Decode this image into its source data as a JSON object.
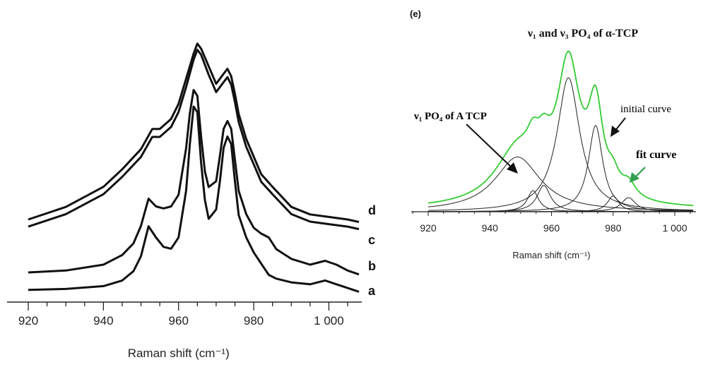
{
  "chart_data": [
    {
      "type": "line",
      "panel": "left",
      "title": "",
      "xlabel": "Raman shift (cm⁻¹)",
      "ylabel": "",
      "xlim": [
        920,
        1008
      ],
      "ylim": [
        0,
        1
      ],
      "x_ticks": [
        920,
        940,
        960,
        980,
        1000
      ],
      "x_tick_labels": [
        "920",
        "940",
        "960",
        "980",
        "1 000"
      ],
      "series": [
        {
          "name": "a",
          "x": [
            920,
            930,
            940,
            945,
            948,
            950,
            952,
            954,
            956,
            958,
            960,
            962,
            963,
            964,
            965,
            966,
            967,
            968,
            970,
            971,
            972,
            973,
            974,
            975,
            976,
            978,
            980,
            982,
            984,
            986,
            990,
            995,
            999,
            1002,
            1005,
            1008
          ],
          "values": [
            0.02,
            0.025,
            0.04,
            0.07,
            0.12,
            0.2,
            0.36,
            0.3,
            0.25,
            0.24,
            0.3,
            0.55,
            0.8,
            1.0,
            0.97,
            0.7,
            0.5,
            0.4,
            0.45,
            0.6,
            0.78,
            0.84,
            0.8,
            0.6,
            0.42,
            0.3,
            0.22,
            0.16,
            0.1,
            0.08,
            0.06,
            0.05,
            0.07,
            0.05,
            0.03,
            0.01
          ]
        },
        {
          "name": "b",
          "x": [
            920,
            930,
            940,
            945,
            948,
            950,
            952,
            954,
            956,
            958,
            960,
            962,
            963,
            964,
            965,
            966,
            967,
            968,
            970,
            971,
            972,
            973,
            974,
            975,
            976,
            978,
            980,
            982,
            984,
            986,
            990,
            995,
            999,
            1002,
            1005,
            1008
          ],
          "values": [
            0.08,
            0.09,
            0.12,
            0.17,
            0.23,
            0.32,
            0.46,
            0.42,
            0.41,
            0.42,
            0.48,
            0.72,
            0.9,
            1.02,
            0.99,
            0.78,
            0.6,
            0.52,
            0.55,
            0.68,
            0.82,
            0.86,
            0.82,
            0.66,
            0.5,
            0.38,
            0.31,
            0.28,
            0.26,
            0.2,
            0.15,
            0.12,
            0.14,
            0.12,
            0.09,
            0.07
          ]
        },
        {
          "name": "c",
          "x": [
            920,
            930,
            940,
            945,
            950,
            953,
            955,
            958,
            960,
            962,
            964,
            965,
            966,
            968,
            970,
            972,
            973,
            974,
            975,
            976,
            978,
            980,
            982,
            985,
            990,
            995,
            1000,
            1005,
            1008
          ],
          "values": [
            0.3,
            0.35,
            0.43,
            0.5,
            0.58,
            0.66,
            0.66,
            0.7,
            0.76,
            0.86,
            0.97,
            1.01,
            0.99,
            0.91,
            0.84,
            0.88,
            0.9,
            0.87,
            0.8,
            0.72,
            0.62,
            0.55,
            0.48,
            0.43,
            0.35,
            0.32,
            0.31,
            0.3,
            0.29
          ]
        },
        {
          "name": "d",
          "x": [
            920,
            930,
            940,
            945,
            950,
            953,
            955,
            958,
            960,
            962,
            964,
            965,
            966,
            968,
            970,
            972,
            973,
            974,
            975,
            976,
            978,
            980,
            982,
            985,
            990,
            995,
            1000,
            1005,
            1008
          ],
          "values": [
            0.34,
            0.39,
            0.47,
            0.54,
            0.62,
            0.7,
            0.7,
            0.74,
            0.8,
            0.9,
            1.0,
            1.04,
            1.02,
            0.95,
            0.88,
            0.92,
            0.94,
            0.91,
            0.84,
            0.76,
            0.66,
            0.59,
            0.52,
            0.47,
            0.39,
            0.36,
            0.35,
            0.34,
            0.33
          ]
        }
      ],
      "curve_labels": [
        "d",
        "c",
        "b",
        "a"
      ],
      "grid": false
    },
    {
      "type": "line",
      "panel": "right",
      "panel_label": "(e)",
      "title": "ν₁ and ν₃ PO₄ of α-TCP",
      "xlabel": "Raman shift (cm⁻¹)",
      "xlim": [
        920,
        1006
      ],
      "ylim": [
        0,
        1
      ],
      "x_ticks": [
        920,
        940,
        960,
        980,
        1000
      ],
      "x_tick_labels": [
        "920",
        "940",
        "960",
        "980",
        "1 000"
      ],
      "components": [
        {
          "center": 949,
          "height": 0.31,
          "width": 9
        },
        {
          "center": 954,
          "height": 0.12,
          "width": 2.2
        },
        {
          "center": 957.5,
          "height": 0.15,
          "width": 2.6
        },
        {
          "center": 965.5,
          "height": 0.76,
          "width": 4.5
        },
        {
          "center": 974.3,
          "height": 0.49,
          "width": 2.8
        },
        {
          "center": 980,
          "height": 0.09,
          "width": 2.2
        },
        {
          "center": 985,
          "height": 0.08,
          "width": 2.8
        }
      ],
      "fit_curve_color": "#33cc33",
      "annotations": [
        {
          "text": "ν₁ PO₄ of A TCP",
          "color": "#111111"
        },
        {
          "text": "initial curve",
          "color": "#111111"
        },
        {
          "text": "fit curve",
          "color": "#2f9e4f"
        }
      ]
    }
  ]
}
